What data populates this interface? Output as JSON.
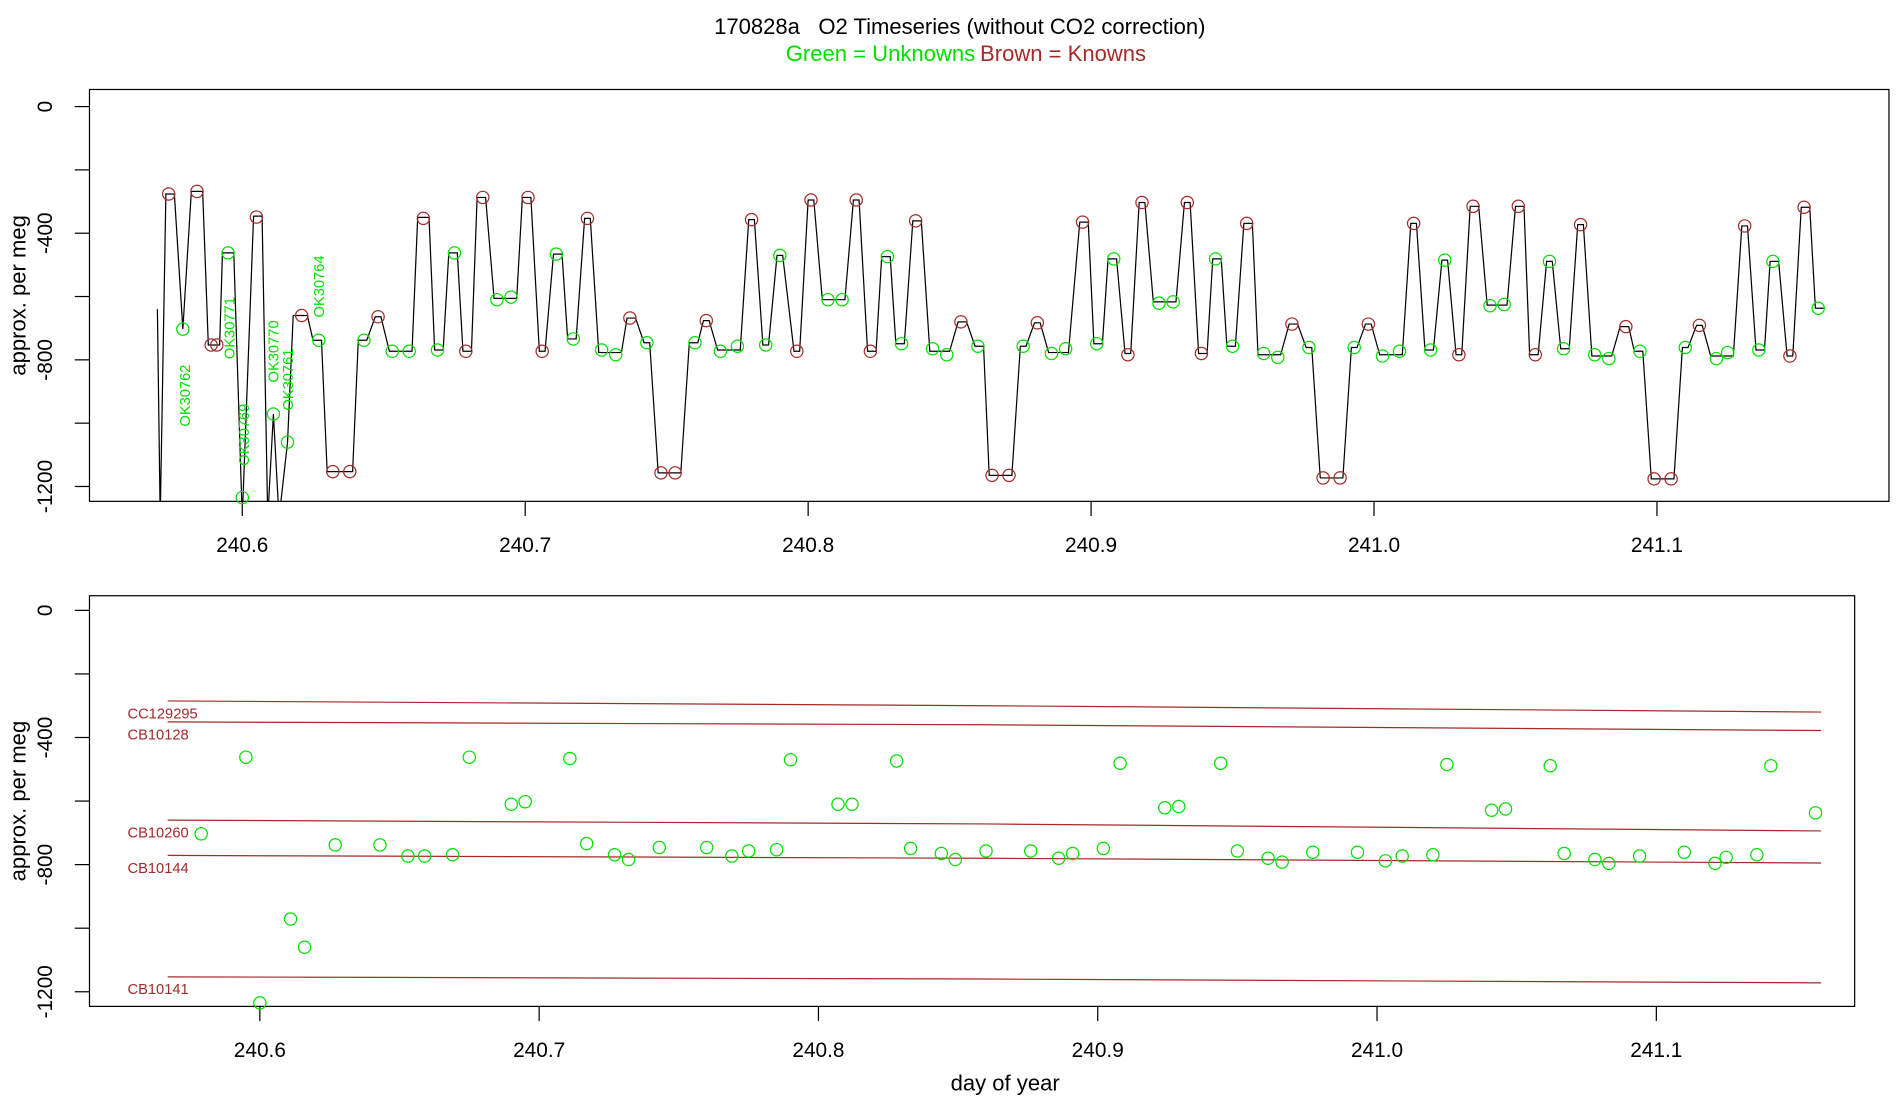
{
  "chart_data": [
    {
      "type": "line",
      "title": "170828a   O2 Timeseries (without CO2 correction)",
      "subtitle": [
        {
          "text": "Green = Unknowns",
          "color": "#00e000"
        },
        {
          "text": "Brown = Knowns",
          "color": "#a52a2a"
        }
      ],
      "ylabel": "approx. per meg",
      "xlim": [
        240.546,
        241.182
      ],
      "ylim": [
        -1247,
        54
      ],
      "xticks": [
        240.6,
        240.7,
        240.8,
        240.9,
        {
          "value": 241,
          "label": "241.0"
        },
        241.1
      ],
      "yticks": [
        0,
        -400,
        -800,
        -1200
      ],
      "yminor_ticks": [
        -200,
        -600,
        -1000
      ],
      "annotation_color": "#00e000",
      "annotations": [
        {
          "text": "OK30762"
        },
        {
          "text": "OK30771"
        },
        {
          "text": "OK30769"
        },
        {
          "text": "OK30770"
        },
        {
          "text": "OK30761"
        },
        {
          "text": "OK30764"
        }
      ],
      "series": [
        {
          "mode": "line",
          "color": "#000000",
          "x": [
            240.57,
            240.571,
            240.573,
            240.576,
            240.579,
            240.582,
            240.586,
            240.588,
            240.592,
            240.593,
            240.597,
            240.6,
            240.604,
            240.607,
            240.609,
            240.611,
            240.613,
            240.616,
            240.618,
            240.623,
            240.625,
            240.628,
            240.63,
            240.639,
            240.641,
            240.644,
            240.647,
            240.649,
            240.652,
            240.66,
            240.662,
            240.666,
            240.668,
            240.671,
            240.673,
            240.676,
            240.678,
            240.681,
            240.683,
            240.686,
            240.689,
            240.697,
            240.699,
            240.702,
            240.705,
            240.707,
            240.71,
            240.713,
            240.715,
            240.718,
            240.721,
            240.723,
            240.726,
            240.734,
            240.736,
            240.739,
            240.742,
            240.744,
            240.747,
            240.755,
            240.758,
            240.761,
            240.763,
            240.765,
            240.768,
            240.776,
            240.779,
            240.781,
            240.784,
            240.786,
            240.789,
            240.791,
            240.795,
            240.797,
            240.8,
            240.802,
            240.805,
            240.813,
            240.816,
            240.818,
            240.821,
            240.824,
            240.826,
            240.829,
            240.831,
            240.834,
            240.837,
            240.84,
            240.843,
            240.85,
            240.853,
            240.856,
            240.859,
            240.862,
            240.864,
            240.872,
            240.875,
            240.877,
            240.88,
            240.882,
            240.885,
            240.892,
            240.896,
            240.899,
            240.901,
            240.904,
            240.906,
            240.909,
            240.912,
            240.914,
            240.917,
            240.919,
            240.922,
            240.93,
            240.933,
            240.935,
            240.938,
            240.941,
            240.943,
            240.946,
            240.948,
            240.951,
            240.954,
            240.957,
            240.959,
            240.967,
            240.97,
            240.973,
            240.976,
            240.978,
            240.981,
            240.989,
            240.992,
            240.994,
            240.997,
            240.999,
            241.002,
            241.01,
            241.013,
            241.015,
            241.018,
            241.021,
            241.024,
            241.026,
            241.029,
            241.031,
            241.034,
            241.037,
            241.04,
            241.047,
            241.05,
            241.053,
            241.055,
            241.058,
            241.061,
            241.063,
            241.066,
            241.069,
            241.072,
            241.074,
            241.077,
            241.084,
            241.087,
            241.09,
            241.092,
            241.095,
            241.098,
            241.106,
            241.109,
            241.111,
            241.114,
            241.116,
            241.119,
            241.127,
            241.13,
            241.132,
            241.135,
            241.138,
            241.14,
            241.143,
            241.146,
            241.148,
            241.151,
            241.154,
            241.156,
            241.159
          ],
          "values": [
            -640,
            -1300,
            -276,
            -276,
            -703,
            -268,
            -268,
            -753,
            -753,
            -462,
            -462,
            -1300,
            -346,
            -346,
            -1300,
            -971,
            -1300,
            -1060,
            -660,
            -660,
            -738,
            -738,
            -1153,
            -1153,
            -738,
            -738,
            -664,
            -664,
            -773,
            -773,
            -350,
            -350,
            -769,
            -769,
            -462,
            -462,
            -773,
            -773,
            -287,
            -287,
            -606,
            -606,
            -287,
            -287,
            -773,
            -773,
            -466,
            -466,
            -734,
            -734,
            -353,
            -353,
            -777,
            -777,
            -668,
            -668,
            -746,
            -746,
            -1157,
            -1157,
            -746,
            -746,
            -676,
            -676,
            -769,
            -769,
            -357,
            -357,
            -753,
            -753,
            -470,
            -470,
            -773,
            -773,
            -295,
            -295,
            -610,
            -610,
            -295,
            -295,
            -773,
            -773,
            -474,
            -474,
            -749,
            -749,
            -361,
            -361,
            -773,
            -773,
            -680,
            -680,
            -757,
            -757,
            -1165,
            -1165,
            -757,
            -757,
            -683,
            -683,
            -777,
            -777,
            -365,
            -365,
            -749,
            -749,
            -481,
            -481,
            -780,
            -780,
            -303,
            -303,
            -617,
            -617,
            -303,
            -303,
            -780,
            -780,
            -481,
            -481,
            -757,
            -757,
            -369,
            -369,
            -784,
            -784,
            -687,
            -687,
            -761,
            -761,
            -1173,
            -1173,
            -761,
            -761,
            -687,
            -687,
            -784,
            -784,
            -369,
            -369,
            -769,
            -769,
            -485,
            -485,
            -784,
            -784,
            -315,
            -315,
            -627,
            -627,
            -315,
            -315,
            -784,
            -784,
            -489,
            -489,
            -765,
            -765,
            -373,
            -373,
            -788,
            -788,
            -695,
            -695,
            -773,
            -773,
            -1176,
            -1176,
            -761,
            -761,
            -691,
            -691,
            -788,
            -788,
            -377,
            -377,
            -769,
            -769,
            -489,
            -489,
            -788,
            -788,
            -318,
            -318,
            -637,
            -637
          ]
        },
        {
          "mode": "points",
          "color": "#00e000",
          "x": [
            240.579,
            240.595,
            240.6,
            240.611,
            240.616,
            240.627,
            240.643,
            240.653,
            240.659,
            240.669,
            240.675,
            240.69,
            240.695,
            240.711,
            240.717,
            240.727,
            240.732,
            240.743,
            240.76,
            240.769,
            240.775,
            240.785,
            240.79,
            240.807,
            240.812,
            240.828,
            240.833,
            240.844,
            240.849,
            240.86,
            240.876,
            240.886,
            240.891,
            240.902,
            240.908,
            240.924,
            240.929,
            240.944,
            240.95,
            240.961,
            240.966,
            240.977,
            240.993,
            241.003,
            241.009,
            241.02,
            241.025,
            241.041,
            241.046,
            241.062,
            241.067,
            241.078,
            241.083,
            241.094,
            241.11,
            241.121,
            241.125,
            241.136,
            241.141,
            241.157
          ],
          "values": [
            -703,
            -462,
            -1235,
            -971,
            -1060,
            -738,
            -738,
            -773,
            -773,
            -769,
            -462,
            -610,
            -602,
            -466,
            -734,
            -769,
            -784,
            -746,
            -746,
            -773,
            -757,
            -753,
            -470,
            -610,
            -610,
            -474,
            -749,
            -765,
            -784,
            -757,
            -757,
            -780,
            -765,
            -749,
            -481,
            -621,
            -617,
            -481,
            -757,
            -780,
            -792,
            -761,
            -761,
            -788,
            -773,
            -769,
            -485,
            -629,
            -625,
            -489,
            -765,
            -784,
            -796,
            -773,
            -761,
            -796,
            -777,
            -769,
            -489,
            -637
          ]
        },
        {
          "mode": "points",
          "color": "#a52a2a",
          "x": [
            240.574,
            240.584,
            240.589,
            240.591,
            240.605,
            240.621,
            240.632,
            240.638,
            240.648,
            240.664,
            240.679,
            240.685,
            240.701,
            240.706,
            240.722,
            240.737,
            240.748,
            240.753,
            240.764,
            240.78,
            240.796,
            240.801,
            240.817,
            240.822,
            240.838,
            240.854,
            240.865,
            240.871,
            240.881,
            240.897,
            240.913,
            240.918,
            240.934,
            240.939,
            240.955,
            240.971,
            240.982,
            240.988,
            240.998,
            241.014,
            241.03,
            241.035,
            241.051,
            241.057,
            241.073,
            241.089,
            241.099,
            241.105,
            241.115,
            241.131,
            241.147,
            241.152
          ],
          "values": [
            -276,
            -268,
            -753,
            -753,
            -349,
            -660,
            -1153,
            -1153,
            -664,
            -353,
            -773,
            -287,
            -287,
            -773,
            -353,
            -668,
            -1157,
            -1157,
            -676,
            -357,
            -773,
            -295,
            -295,
            -773,
            -361,
            -680,
            -1165,
            -1165,
            -683,
            -365,
            -784,
            -303,
            -303,
            -780,
            -369,
            -687,
            -1173,
            -1173,
            -687,
            -369,
            -784,
            -315,
            -315,
            -784,
            -373,
            -695,
            -1176,
            -1176,
            -691,
            -377,
            -788,
            -318
          ]
        }
      ]
    },
    {
      "type": "line",
      "ylabel": "approx. per meg",
      "xlabel": "day of year",
      "xlim": [
        240.539,
        241.171
      ],
      "ylim": [
        -1246,
        46
      ],
      "xticks": [
        240.6,
        240.7,
        240.8,
        240.9,
        {
          "value": 241,
          "label": "241.0"
        },
        241.1
      ],
      "yticks": [
        0,
        -400,
        -800,
        -1200
      ],
      "yminor_ticks": [
        -200,
        -600,
        -1000
      ],
      "series": [
        {
          "name": "CC129295",
          "mode": "line",
          "color": "#a52a2a",
          "x": [
            240.567,
            240.86,
            241.159
          ],
          "values": [
            -285,
            -300,
            -320
          ]
        },
        {
          "name": "CB10128",
          "mode": "line",
          "color": "#a52a2a",
          "x": [
            240.567,
            240.86,
            241.159
          ],
          "values": [
            -351,
            -360,
            -378
          ]
        },
        {
          "name": "CB10260",
          "mode": "line",
          "color": "#a52a2a",
          "x": [
            240.567,
            240.86,
            241.159
          ],
          "values": [
            -660,
            -672,
            -694
          ]
        },
        {
          "name": "CB10144",
          "mode": "line",
          "color": "#a52a2a",
          "x": [
            240.567,
            240.86,
            241.159
          ],
          "values": [
            -771,
            -780,
            -795
          ]
        },
        {
          "name": "CB10141",
          "mode": "line",
          "color": "#a52a2a",
          "x": [
            240.567,
            240.86,
            241.159
          ],
          "values": [
            -1153,
            -1160,
            -1172
          ]
        },
        {
          "mode": "points",
          "color": "#00e000",
          "x": [
            240.579,
            240.595,
            240.6,
            240.611,
            240.616,
            240.627,
            240.643,
            240.653,
            240.659,
            240.669,
            240.675,
            240.69,
            240.695,
            240.711,
            240.717,
            240.727,
            240.732,
            240.743,
            240.76,
            240.769,
            240.775,
            240.785,
            240.79,
            240.807,
            240.812,
            240.828,
            240.833,
            240.844,
            240.849,
            240.86,
            240.876,
            240.886,
            240.891,
            240.902,
            240.908,
            240.924,
            240.929,
            240.944,
            240.95,
            240.961,
            240.966,
            240.977,
            240.993,
            241.003,
            241.009,
            241.02,
            241.025,
            241.041,
            241.046,
            241.062,
            241.067,
            241.078,
            241.083,
            241.094,
            241.11,
            241.121,
            241.125,
            241.136,
            241.141,
            241.157
          ],
          "values": [
            -703,
            -462,
            -1235,
            -971,
            -1060,
            -738,
            -738,
            -773,
            -773,
            -769,
            -462,
            -610,
            -602,
            -466,
            -734,
            -769,
            -784,
            -746,
            -746,
            -773,
            -757,
            -753,
            -470,
            -610,
            -610,
            -474,
            -749,
            -765,
            -784,
            -757,
            -757,
            -780,
            -765,
            -749,
            -481,
            -621,
            -617,
            -481,
            -757,
            -780,
            -792,
            -761,
            -761,
            -788,
            -773,
            -769,
            -485,
            -629,
            -625,
            -489,
            -765,
            -784,
            -796,
            -773,
            -761,
            -796,
            -777,
            -769,
            -489,
            -637
          ]
        }
      ]
    }
  ]
}
